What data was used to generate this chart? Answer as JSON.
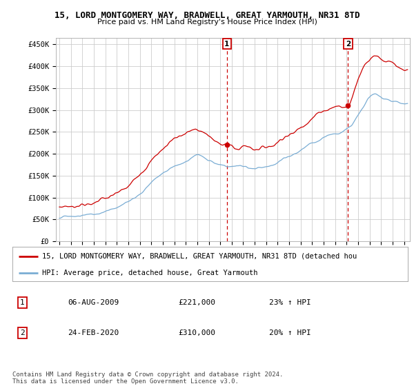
{
  "title": "15, LORD MONTGOMERY WAY, BRADWELL, GREAT YARMOUTH, NR31 8TD",
  "subtitle": "Price paid vs. HM Land Registry's House Price Index (HPI)",
  "ylabel_ticks": [
    "£0",
    "£50K",
    "£100K",
    "£150K",
    "£200K",
    "£250K",
    "£300K",
    "£350K",
    "£400K",
    "£450K"
  ],
  "ytick_values": [
    0,
    50000,
    100000,
    150000,
    200000,
    250000,
    300000,
    350000,
    400000,
    450000
  ],
  "ylim": [
    0,
    465000
  ],
  "xlim_start": 1994.7,
  "xlim_end": 2025.5,
  "xtick_years": [
    1995,
    1996,
    1997,
    1998,
    1999,
    2000,
    2001,
    2002,
    2003,
    2004,
    2005,
    2006,
    2007,
    2008,
    2009,
    2010,
    2011,
    2012,
    2013,
    2014,
    2015,
    2016,
    2017,
    2018,
    2019,
    2020,
    2021,
    2022,
    2023,
    2024,
    2025
  ],
  "red_color": "#cc0000",
  "blue_color": "#7aadd4",
  "sale1_x": 2009.58,
  "sale1_y": 221000,
  "sale2_x": 2020.12,
  "sale2_y": 310000,
  "dashed_line_color": "#cc0000",
  "legend_red": "15, LORD MONTGOMERY WAY, BRADWELL, GREAT YARMOUTH, NR31 8TD (detached hou",
  "legend_blue": "HPI: Average price, detached house, Great Yarmouth",
  "table_row1_num": "1",
  "table_row1_date": "06-AUG-2009",
  "table_row1_price": "£221,000",
  "table_row1_hpi": "23% ↑ HPI",
  "table_row2_num": "2",
  "table_row2_date": "24-FEB-2020",
  "table_row2_price": "£310,000",
  "table_row2_hpi": "20% ↑ HPI",
  "footer": "Contains HM Land Registry data © Crown copyright and database right 2024.\nThis data is licensed under the Open Government Licence v3.0.",
  "background_color": "#ffffff",
  "grid_color": "#cccccc"
}
